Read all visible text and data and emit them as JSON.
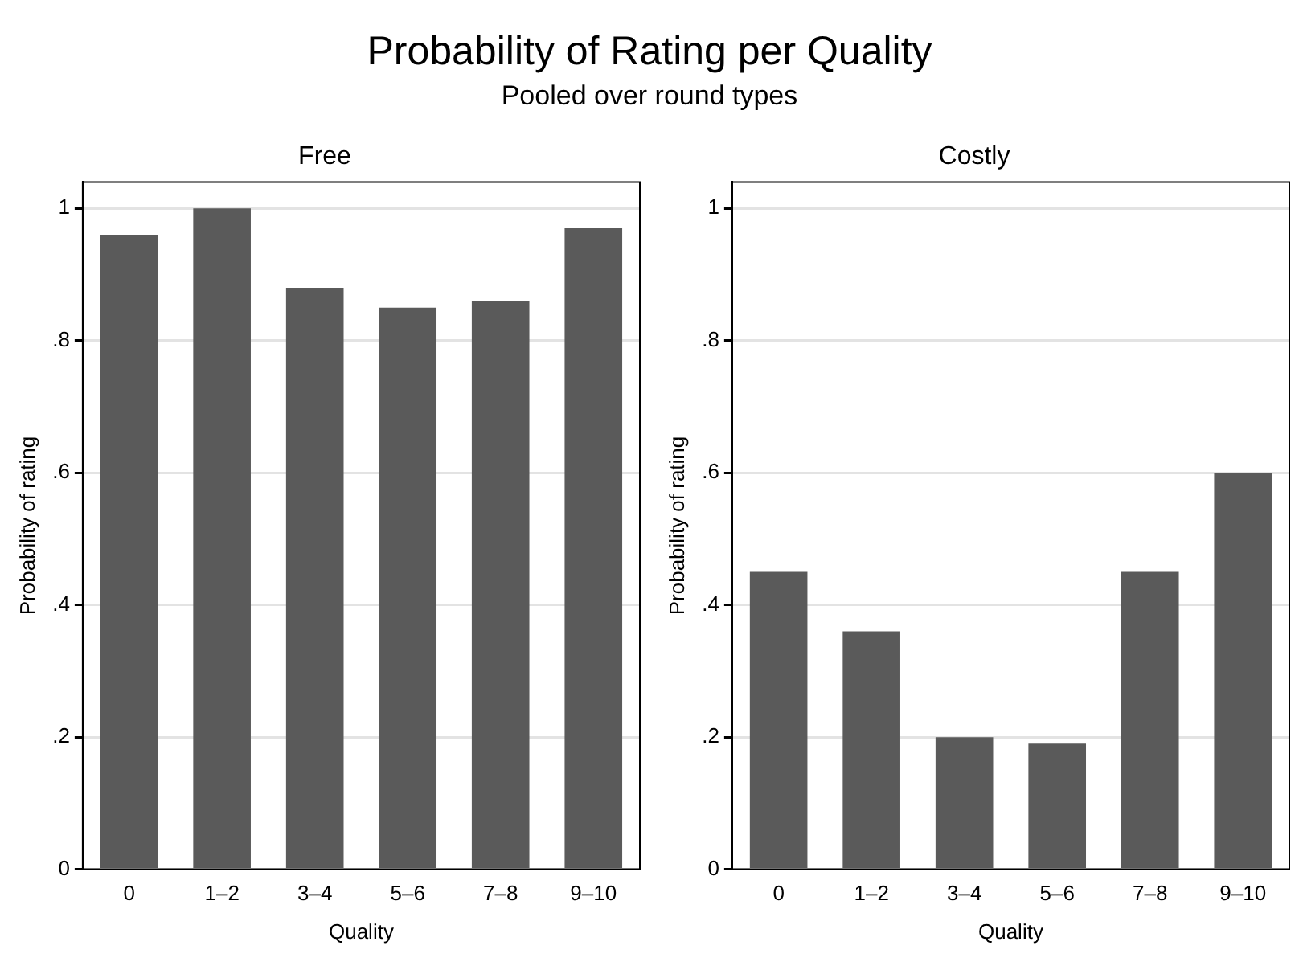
{
  "chart_data": [
    {
      "type": "bar",
      "title": "Free",
      "annotations": [
        "Probability of Rating per Quality",
        "Pooled over round types"
      ],
      "xlabel": "Quality",
      "ylabel": "Probability of rating",
      "categories": [
        "0",
        "1–2",
        "3–4",
        "5–6",
        "7–8",
        "9–10"
      ],
      "values": [
        0.96,
        1.0,
        0.88,
        0.85,
        0.86,
        0.97
      ],
      "color": "#5a5a5a",
      "ylim": [
        0,
        1.04
      ],
      "yticks": [
        {
          "value": 0,
          "label": "0"
        },
        {
          "value": 0.2,
          "label": ".2"
        },
        {
          "value": 0.4,
          "label": ".4"
        },
        {
          "value": 0.6,
          "label": ".6"
        },
        {
          "value": 0.8,
          "label": ".8"
        },
        {
          "value": 1,
          "label": "1"
        }
      ],
      "grid": "y"
    },
    {
      "type": "bar",
      "title": "Costly",
      "xlabel": "Quality",
      "ylabel": "Probability of rating",
      "categories": [
        "0",
        "1–2",
        "3–4",
        "5–6",
        "7–8",
        "9–10"
      ],
      "values": [
        0.45,
        0.36,
        0.2,
        0.19,
        0.45,
        0.6
      ],
      "color": "#5a5a5a",
      "ylim": [
        0,
        1.04
      ],
      "yticks": [
        {
          "value": 0,
          "label": "0"
        },
        {
          "value": 0.2,
          "label": ".2"
        },
        {
          "value": 0.4,
          "label": ".4"
        },
        {
          "value": 0.6,
          "label": ".6"
        },
        {
          "value": 0.8,
          "label": ".8"
        },
        {
          "value": 1,
          "label": "1"
        }
      ],
      "grid": "y"
    }
  ]
}
